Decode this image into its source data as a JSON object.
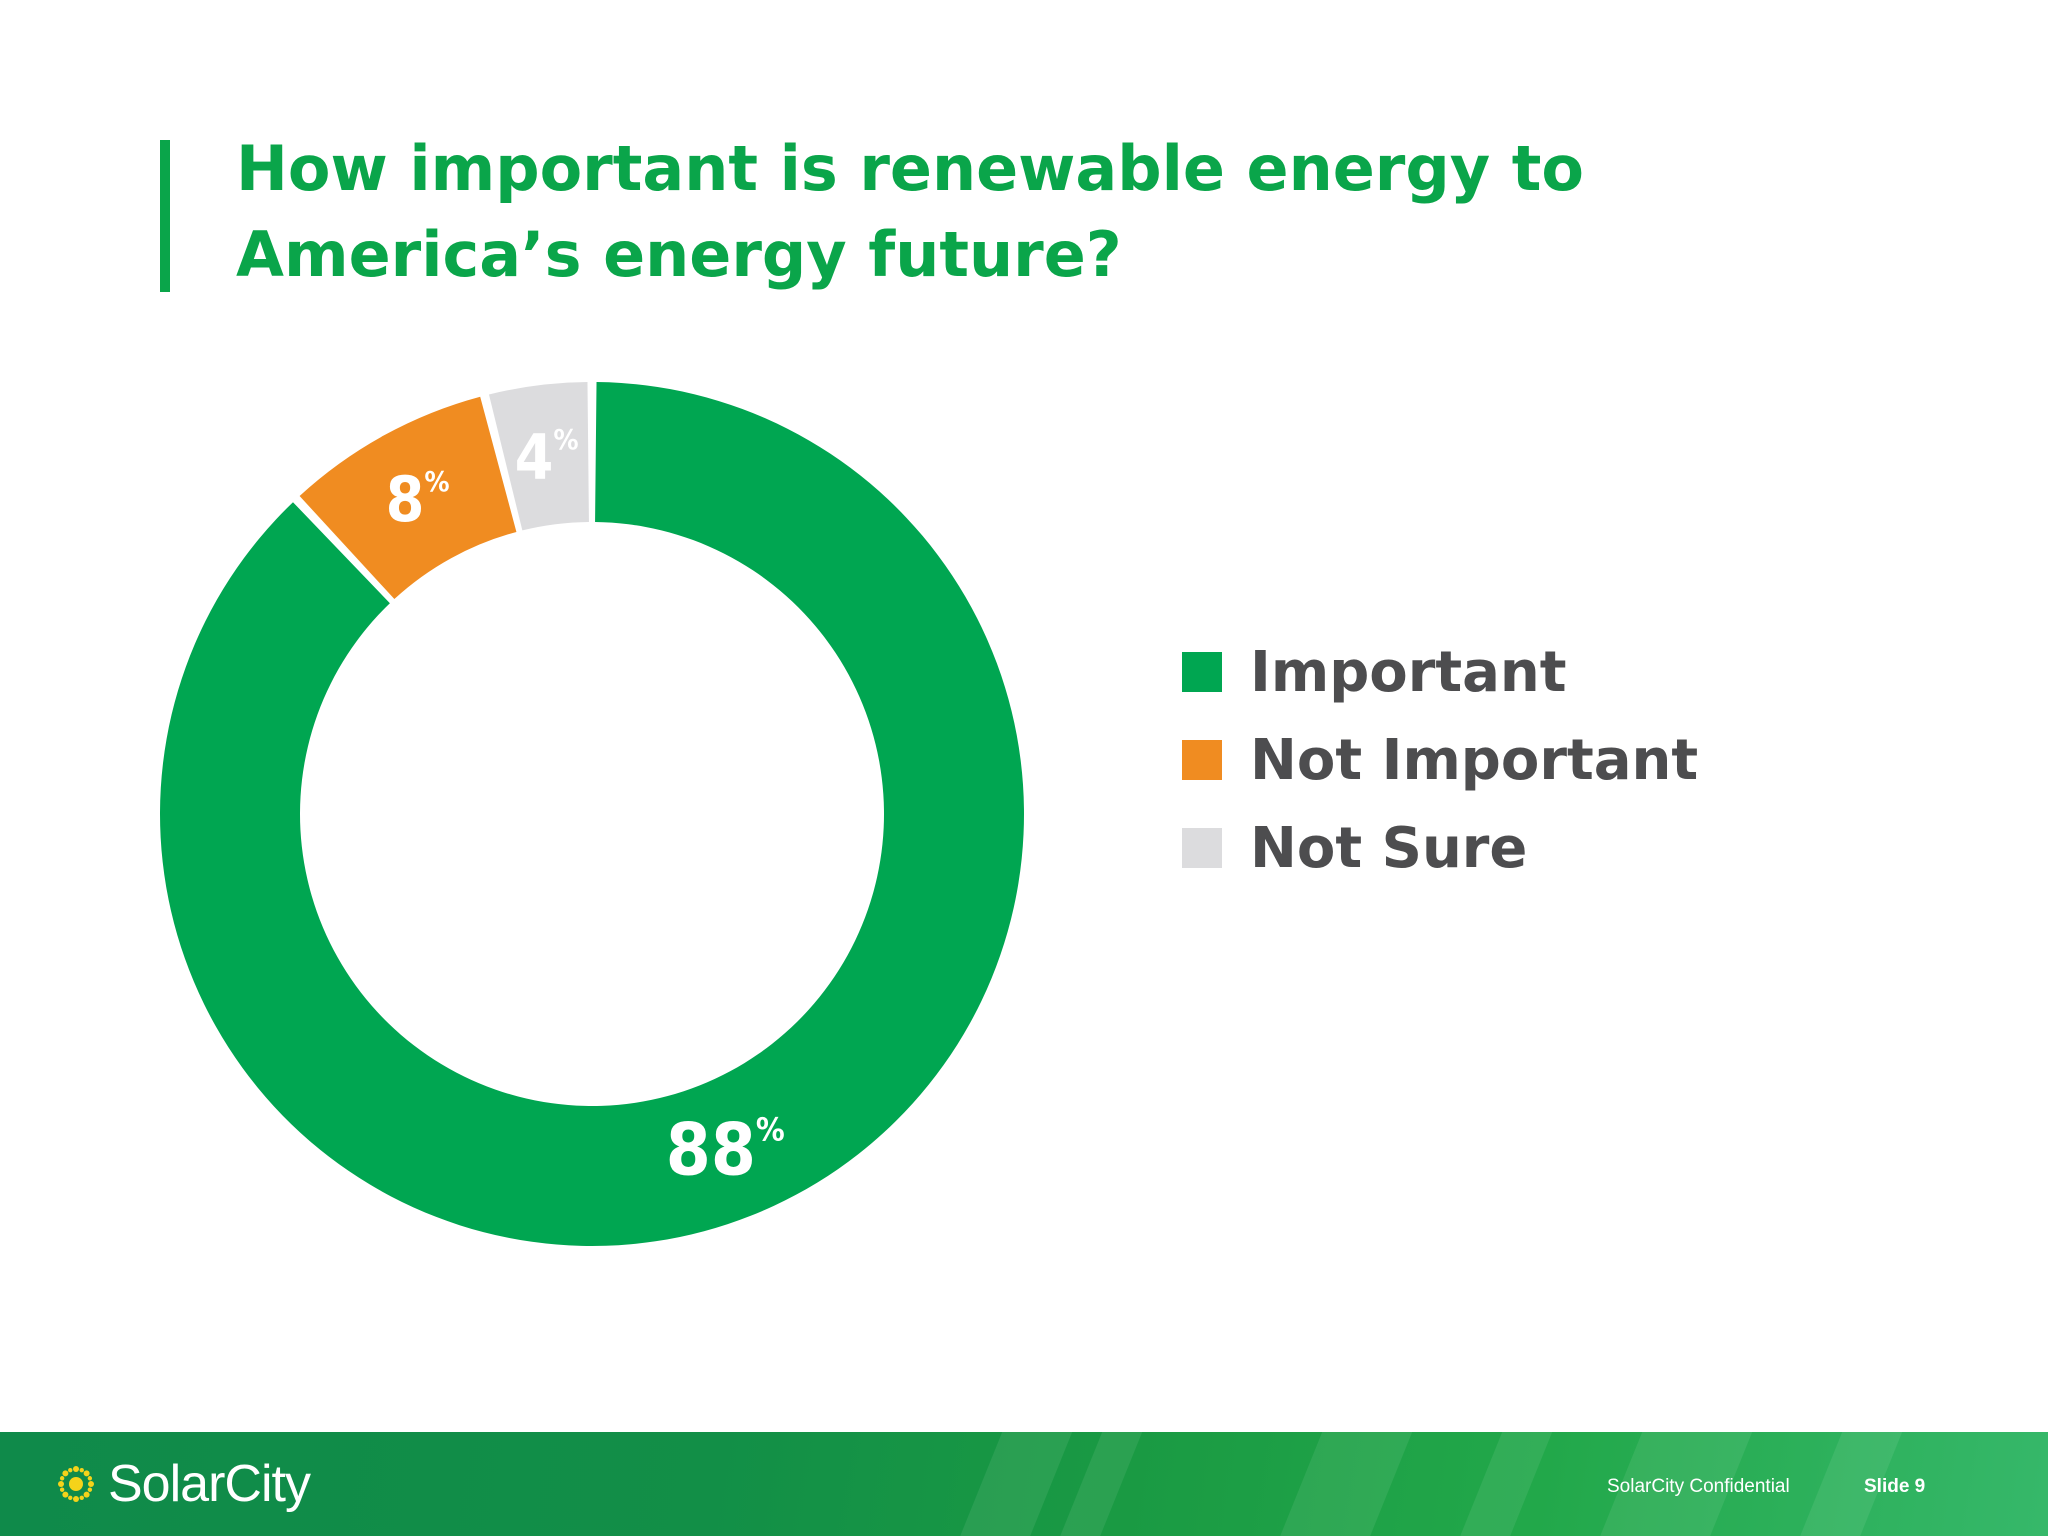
{
  "title": "How important is renewable energy to America’s energy future?",
  "chart_data": {
    "type": "pie",
    "donut": true,
    "categories": [
      "Important",
      "Not Important",
      "Not Sure"
    ],
    "values": [
      88,
      8,
      4
    ],
    "labels": [
      "88",
      "8",
      "4"
    ],
    "unit_symbol": "%",
    "colors": [
      "#00a651",
      "#f08c21",
      "#dcdcde"
    ],
    "legend_position": "right"
  },
  "legend": [
    {
      "label": "Important",
      "color": "#00a651"
    },
    {
      "label": "Not Important",
      "color": "#f08c21"
    },
    {
      "label": "Not Sure",
      "color": "#dcdcde"
    }
  ],
  "footer": {
    "logo_text": "SolarCity",
    "confidential": "SolarCity Confidential",
    "slide": "Slide 9"
  },
  "colors": {
    "accent_green": "#0aa54a",
    "text_gray": "#4d4d4f"
  }
}
